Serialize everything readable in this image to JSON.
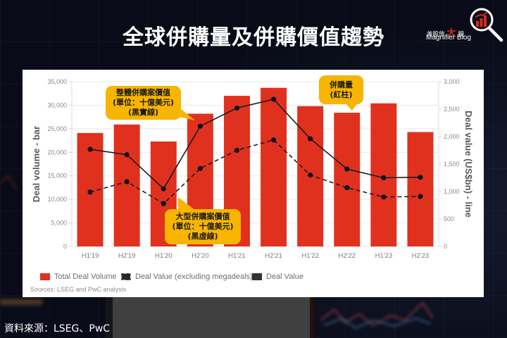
{
  "header": {
    "title": "全球併購量及併購價值趨勢"
  },
  "logo": {
    "cn_pre": "美股放",
    "cn_accent": "大",
    "cn_post": "鏡",
    "en": "Magnifier Blog",
    "icon": "magnifier-chart-icon"
  },
  "colors": {
    "background": "#090c18",
    "bar": "#e0311f",
    "line": "#1a1a1a",
    "callout": "#f7b500",
    "logo_accent": "#e0241b",
    "grid": "#e8e8e8"
  },
  "chart_card": {
    "left_axis_title": "Deal volume - bar",
    "right_axis_title": "Deal value (US$bn) - line",
    "left_ticks": [
      "0",
      "5,000",
      "10,000",
      "15,000",
      "20,000",
      "25,000",
      "30,000",
      "35,000"
    ],
    "right_ticks": [
      "0",
      "500",
      "1,000",
      "1,500",
      "2,000",
      "2,500",
      "3,000"
    ],
    "legend": [
      {
        "label": "Total Deal Volume",
        "icon": "red-square"
      },
      {
        "label": "Deal Value (excluding megadeals)",
        "icon": "dashed-line-square"
      },
      {
        "label": "Deal Value",
        "icon": "dark-square"
      }
    ],
    "source": "Sources: LSEG and PwC analysis",
    "callouts": [
      {
        "lines": [
          "整體併購案價值",
          "(單位：十億美元)",
          "(黑實線)"
        ]
      },
      {
        "lines": [
          "大型併購案價值",
          "(單位：十億美元)",
          "(黑虛線)"
        ]
      },
      {
        "lines": [
          "併購量",
          "(紅柱)"
        ]
      }
    ]
  },
  "footer": {
    "source": "資料來源：LSEG、PwC"
  },
  "chart_data": {
    "type": "bar",
    "title": "全球併購量及併購價值趨勢",
    "categories": [
      "H1'19",
      "H2'19",
      "H1'20",
      "H2'20",
      "H1'21",
      "H2'21",
      "H1'22",
      "H2'22",
      "H1'23",
      "H2'23"
    ],
    "series": [
      {
        "name": "Total Deal Volume",
        "type": "bar",
        "axis": "left",
        "values": [
          24100,
          25900,
          22300,
          28200,
          32000,
          33700,
          29800,
          28400,
          30400,
          24300
        ]
      },
      {
        "name": "Deal Value (excluding megadeals)",
        "type": "line",
        "style": "dashed",
        "axis": "right",
        "values": [
          990,
          1180,
          780,
          1420,
          1750,
          1940,
          1300,
          1070,
          900,
          910
        ]
      },
      {
        "name": "Deal Value",
        "type": "line",
        "style": "solid",
        "axis": "right",
        "values": [
          1770,
          1670,
          1050,
          2190,
          2520,
          2680,
          1960,
          1410,
          1250,
          1260
        ]
      }
    ],
    "xlabel": "",
    "ylabel": "Deal volume - bar",
    "y2label": "Deal value (US$bn) - line",
    "ylim": [
      0,
      35000
    ],
    "y2lim": [
      0,
      3000
    ],
    "grid": true,
    "legend_position": "bottom",
    "annotations": [
      "整體併購案價值 (單位：十億美元) (黑實線)",
      "大型併購案價值 (單位：十億美元) (黑虛線)",
      "併購量 (紅柱)"
    ],
    "source": "Sources: LSEG and PwC analysis"
  }
}
